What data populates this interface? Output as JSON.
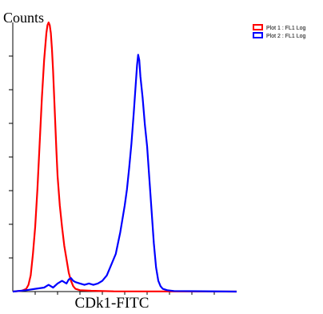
{
  "chart_data": {
    "type": "line",
    "ylabel": "Counts",
    "xlabel": "CDk1-FITC",
    "legend": {
      "position": "top-right"
    },
    "grid": false,
    "xlim": [
      0,
      100
    ],
    "ylim": [
      0,
      100
    ],
    "series": [
      {
        "name": "Plot 1 : FL1 Log",
        "color": "#ff0000",
        "points": [
          [
            0,
            0
          ],
          [
            4,
            0.3
          ],
          [
            6,
            1
          ],
          [
            7,
            2.5
          ],
          [
            8,
            6
          ],
          [
            9,
            14
          ],
          [
            10,
            24
          ],
          [
            11,
            38
          ],
          [
            12,
            55
          ],
          [
            13,
            72
          ],
          [
            14,
            86
          ],
          [
            15,
            96
          ],
          [
            15.5,
            99
          ],
          [
            16,
            100
          ],
          [
            16.5,
            99
          ],
          [
            17,
            96
          ],
          [
            17.5,
            90
          ],
          [
            18,
            82
          ],
          [
            18.5,
            72
          ],
          [
            19,
            62
          ],
          [
            19.5,
            52
          ],
          [
            20,
            43
          ],
          [
            21,
            32
          ],
          [
            22,
            24
          ],
          [
            23,
            17
          ],
          [
            24,
            12
          ],
          [
            25,
            7
          ],
          [
            26,
            4
          ],
          [
            27,
            2
          ],
          [
            28,
            1
          ],
          [
            30,
            0.5
          ],
          [
            35,
            0.3
          ],
          [
            45,
            0.1
          ],
          [
            100,
            0
          ]
        ]
      },
      {
        "name": "Plot 2 : FL1 Log",
        "color": "#0000ff",
        "points": [
          [
            0,
            0
          ],
          [
            6,
            0.5
          ],
          [
            10,
            1
          ],
          [
            14,
            1.5
          ],
          [
            16,
            2.5
          ],
          [
            18,
            1.5
          ],
          [
            20,
            3
          ],
          [
            22,
            4
          ],
          [
            24,
            3
          ],
          [
            25,
            4.5
          ],
          [
            26,
            5
          ],
          [
            27,
            4
          ],
          [
            28,
            3.5
          ],
          [
            30,
            3
          ],
          [
            32,
            2.5
          ],
          [
            34,
            3
          ],
          [
            36,
            2.5
          ],
          [
            38,
            3
          ],
          [
            40,
            4
          ],
          [
            42,
            6
          ],
          [
            44,
            10
          ],
          [
            46,
            14
          ],
          [
            47,
            18
          ],
          [
            48,
            22
          ],
          [
            49,
            27
          ],
          [
            50,
            32
          ],
          [
            51,
            38
          ],
          [
            52,
            46
          ],
          [
            53,
            55
          ],
          [
            54,
            66
          ],
          [
            55,
            78
          ],
          [
            55.5,
            84
          ],
          [
            56,
            88
          ],
          [
            56.5,
            86
          ],
          [
            57,
            80
          ],
          [
            58,
            72
          ],
          [
            59,
            62
          ],
          [
            60,
            54
          ],
          [
            61,
            42
          ],
          [
            62,
            30
          ],
          [
            63,
            18
          ],
          [
            64,
            9
          ],
          [
            65,
            4
          ],
          [
            66,
            2
          ],
          [
            67,
            1
          ],
          [
            69,
            0.5
          ],
          [
            72,
            0.2
          ],
          [
            100,
            0
          ]
        ]
      }
    ]
  }
}
